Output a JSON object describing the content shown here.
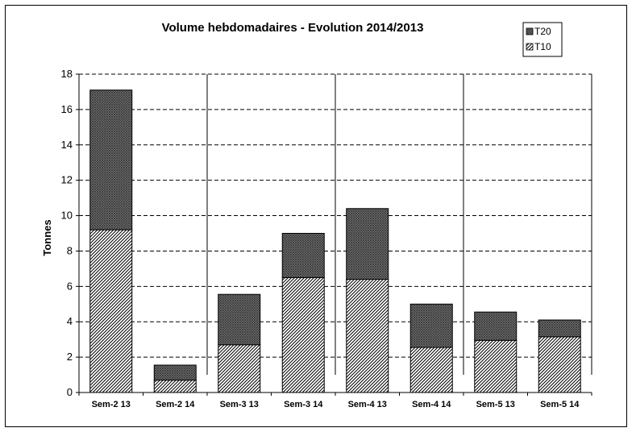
{
  "chart_data": {
    "type": "bar",
    "stacked": true,
    "title": "Volume hebdomadaires  - Evolution 2014/2013",
    "xlabel": "",
    "ylabel": "Tonnes",
    "ylim": [
      0,
      18
    ],
    "yticks": [
      0,
      2,
      4,
      6,
      8,
      10,
      12,
      14,
      16,
      18
    ],
    "grid": "horizontal dashed",
    "legend_position": "top-right",
    "categories": [
      "Sem-2  13",
      "Sem-2  14",
      "Sem-3  13",
      "Sem-3  14",
      "Sem-4  13",
      "Sem-4  14",
      "Sem-5  13",
      "Sem-5  14"
    ],
    "series": [
      {
        "name": "T10",
        "pattern": "diagonal-hatch",
        "values": [
          9.2,
          0.7,
          2.7,
          6.5,
          6.4,
          2.55,
          2.95,
          3.15
        ]
      },
      {
        "name": "T20",
        "pattern": "crosshatch",
        "values": [
          7.9,
          0.85,
          2.85,
          2.5,
          4.0,
          2.45,
          1.6,
          0.95
        ]
      }
    ]
  }
}
